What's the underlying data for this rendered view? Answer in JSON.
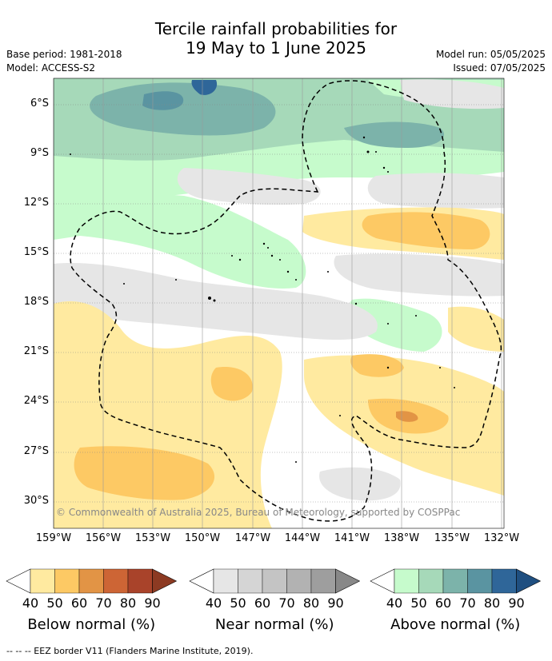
{
  "title_line1": "Tercile rainfall probabilities for",
  "title_line2": "19 May to 1 June 2025",
  "base_period": "Base period: 1981-2018",
  "model": "Model: ACCESS-S2",
  "model_run": "Model run: 05/05/2025",
  "issued": "Issued: 07/05/2025",
  "copyright": "© Commonwealth of Australia 2025, Bureau of Meteorology, supported by COSPPac",
  "footer": "--  --  -- EEZ border V11 (Flanders Marine Institute, 2019).",
  "lat_labels": [
    "6°S",
    "9°S",
    "12°S",
    "15°S",
    "18°S",
    "21°S",
    "24°S",
    "27°S",
    "30°S"
  ],
  "lon_labels": [
    "159°W",
    "156°W",
    "153°W",
    "150°W",
    "147°W",
    "144°W",
    "141°W",
    "138°W",
    "135°W",
    "132°W"
  ],
  "colorbars": [
    {
      "label": "Below normal (%)",
      "ticks": [
        "40",
        "50",
        "60",
        "70",
        "80",
        "90"
      ],
      "colors": [
        "#ffffff",
        "#ffeaa0",
        "#fdc964",
        "#e29445",
        "#cd6535",
        "#a9432a",
        "#8c3a22"
      ]
    },
    {
      "label": "Near normal (%)",
      "ticks": [
        "40",
        "50",
        "60",
        "70",
        "80",
        "90"
      ],
      "colors": [
        "#ffffff",
        "#e6e6e6",
        "#d5d5d5",
        "#c4c4c4",
        "#b2b2b2",
        "#9e9e9e",
        "#888888"
      ]
    },
    {
      "label": "Above normal (%)",
      "ticks": [
        "40",
        "50",
        "60",
        "70",
        "80",
        "90"
      ],
      "colors": [
        "#ffffff",
        "#c6fbcc",
        "#a6d9b9",
        "#7cb3aa",
        "#5a94a1",
        "#2f6699",
        "#1f4f80"
      ]
    }
  ]
}
